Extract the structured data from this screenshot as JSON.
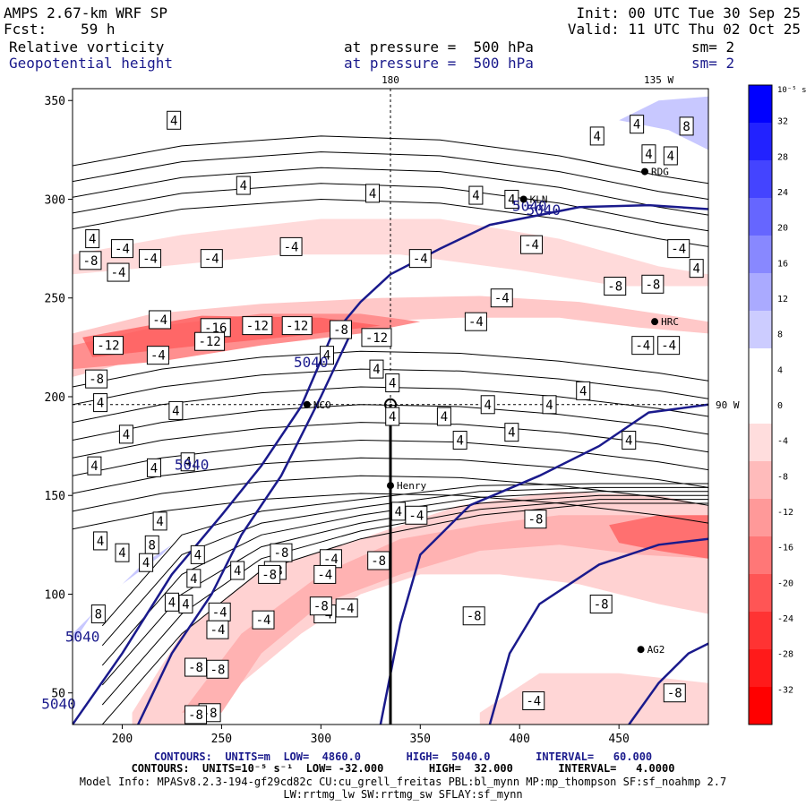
{
  "header": {
    "model": "AMPS 2.67-km WRF SP",
    "init": "Init: 00 UTC Tue 30 Sep 25",
    "fcst_label": "Fcst:",
    "fcst_value": "59 h",
    "valid": "Valid: 11 UTC Thu 02 Oct 25",
    "field1": "Relative vorticity",
    "field1_level": "at pressure =  500 hPa",
    "field1_sm": "sm= 2",
    "field2": "Geopotential height",
    "field2_level": "at pressure =  500 hPa",
    "field2_sm": "sm= 2"
  },
  "footer": {
    "line1": "CONTOURS:  UNITS=m  LOW=  4860.0       HIGH=  5040.0       INTERVAL=   60.000",
    "line2": "CONTOURS:  UNITS=10⁻⁵ s⁻¹  LOW= -32.000       HIGH=  32.000       INTERVAL=   4.0000",
    "line3": "Model Info: MPASv8.2.3-194-gf29cd82c CU:cu_grell_freitas PBL:bl_mynn MP:mp_thompson SF:sf_noahmp 2.7",
    "line4": "LW:rrtmg_lw SW:rrtmg_sw SFLAY:sf_mynn"
  },
  "colors": {
    "height_contour": "#1a1a8c",
    "vort_pos_max": "#0000ff",
    "vort_neg_max": "#ff0000"
  },
  "chart_data": {
    "type": "heatmap",
    "description_fields": [
      "Relative vorticity (shaded + black contours)",
      "Geopotential height (blue contours)"
    ],
    "x_ticks": [
      200,
      250,
      300,
      350,
      400,
      450
    ],
    "y_ticks": [
      50,
      100,
      150,
      200,
      250,
      300,
      350
    ],
    "xlim": [
      175,
      495
    ],
    "ylim": [
      34,
      356
    ],
    "lon_labels": [
      {
        "text": "180",
        "x": 335,
        "y_side": "top"
      },
      {
        "text": "135 W",
        "x": 470,
        "y_side": "top"
      },
      {
        "text": "90 W",
        "x": 495,
        "y": 196,
        "side": "right"
      }
    ],
    "stations": [
      {
        "name": "RDG",
        "x": 463,
        "y": 314
      },
      {
        "name": "KLN",
        "x": 402,
        "y": 300
      },
      {
        "name": "HRC",
        "x": 468,
        "y": 238
      },
      {
        "name": "NCO",
        "x": 293,
        "y": 196
      },
      {
        "name": "Henry",
        "x": 335,
        "y": 155
      },
      {
        "name": "AG2",
        "x": 461,
        "y": 72
      }
    ],
    "height_contour_label": "5040",
    "height_contour_labels": [
      {
        "x": 412,
        "y": 292
      },
      {
        "x": 295,
        "y": 215
      },
      {
        "x": 235,
        "y": 163
      },
      {
        "x": 180,
        "y": 76
      },
      {
        "x": 168,
        "y": 42
      },
      {
        "x": 405,
        "y": 294
      }
    ],
    "vort_labels": [
      {
        "v": "4",
        "x": 226,
        "y": 340
      },
      {
        "v": "4",
        "x": 439,
        "y": 332
      },
      {
        "v": "4",
        "x": 476,
        "y": 322
      },
      {
        "v": "4",
        "x": 465,
        "y": 323
      },
      {
        "v": "4",
        "x": 261,
        "y": 307
      },
      {
        "v": "4",
        "x": 378,
        "y": 302
      },
      {
        "v": "4",
        "x": 396,
        "y": 300
      },
      {
        "v": "4",
        "x": 326,
        "y": 303
      },
      {
        "v": "4",
        "x": 459,
        "y": 338
      },
      {
        "v": "8",
        "x": 484,
        "y": 337
      },
      {
        "v": "4",
        "x": 185,
        "y": 280
      },
      {
        "v": "-8",
        "x": 184,
        "y": 269
      },
      {
        "v": "-4",
        "x": 200,
        "y": 275
      },
      {
        "v": "-4",
        "x": 214,
        "y": 270
      },
      {
        "v": "-4",
        "x": 198,
        "y": 263
      },
      {
        "v": "-4",
        "x": 245,
        "y": 270
      },
      {
        "v": "-4",
        "x": 285,
        "y": 276
      },
      {
        "v": "-4",
        "x": 350,
        "y": 270
      },
      {
        "v": "-4",
        "x": 406,
        "y": 277
      },
      {
        "v": "-4",
        "x": 480,
        "y": 275
      },
      {
        "v": "4",
        "x": 489,
        "y": 265
      },
      {
        "v": "-8",
        "x": 448,
        "y": 256
      },
      {
        "v": "-8",
        "x": 467,
        "y": 257
      },
      {
        "v": "-4",
        "x": 391,
        "y": 250
      },
      {
        "v": "-4",
        "x": 219,
        "y": 239
      },
      {
        "v": "-16",
        "x": 247,
        "y": 235
      },
      {
        "v": "-12",
        "x": 268,
        "y": 236
      },
      {
        "v": "-12",
        "x": 288,
        "y": 236
      },
      {
        "v": "-8",
        "x": 310,
        "y": 234
      },
      {
        "v": "-12",
        "x": 328,
        "y": 230
      },
      {
        "v": "-12",
        "x": 244,
        "y": 228
      },
      {
        "v": "-4",
        "x": 378,
        "y": 238
      },
      {
        "v": "-4",
        "x": 462,
        "y": 226
      },
      {
        "v": "-4",
        "x": 475,
        "y": 226
      },
      {
        "v": "-12",
        "x": 193,
        "y": 226
      },
      {
        "v": "-4",
        "x": 218,
        "y": 221
      },
      {
        "v": "4",
        "x": 303,
        "y": 221
      },
      {
        "v": "4",
        "x": 328,
        "y": 214
      },
      {
        "v": "-8",
        "x": 187,
        "y": 209
      },
      {
        "v": "4",
        "x": 336,
        "y": 207
      },
      {
        "v": "4",
        "x": 432,
        "y": 203
      },
      {
        "v": "4",
        "x": 189,
        "y": 197
      },
      {
        "v": "4",
        "x": 227,
        "y": 193
      },
      {
        "v": "4",
        "x": 362,
        "y": 190
      },
      {
        "v": "4",
        "x": 384,
        "y": 196
      },
      {
        "v": "4",
        "x": 415,
        "y": 196
      },
      {
        "v": "4",
        "x": 336,
        "y": 190
      },
      {
        "v": "4",
        "x": 202,
        "y": 181
      },
      {
        "v": "4",
        "x": 370,
        "y": 178
      },
      {
        "v": "4",
        "x": 396,
        "y": 182
      },
      {
        "v": "4",
        "x": 455,
        "y": 178
      },
      {
        "v": "4",
        "x": 186,
        "y": 165
      },
      {
        "v": "4",
        "x": 216,
        "y": 164
      },
      {
        "v": "4",
        "x": 233,
        "y": 167
      },
      {
        "v": "4",
        "x": 339,
        "y": 142
      },
      {
        "v": "-4",
        "x": 348,
        "y": 140
      },
      {
        "v": "-8",
        "x": 408,
        "y": 138
      },
      {
        "v": "4",
        "x": 219,
        "y": 137
      },
      {
        "v": "8",
        "x": 215,
        "y": 125
      },
      {
        "v": "4",
        "x": 189,
        "y": 127
      },
      {
        "v": "4",
        "x": 200,
        "y": 121
      },
      {
        "v": "4",
        "x": 238,
        "y": 120
      },
      {
        "v": "4",
        "x": 212,
        "y": 116
      },
      {
        "v": "-8",
        "x": 280,
        "y": 121
      },
      {
        "v": "-4",
        "x": 305,
        "y": 118
      },
      {
        "v": "-8",
        "x": 329,
        "y": 117
      },
      {
        "v": "4",
        "x": 258,
        "y": 112
      },
      {
        "v": "4",
        "x": 236,
        "y": 108
      },
      {
        "v": "-8",
        "x": 277,
        "y": 112
      },
      {
        "v": "-8",
        "x": 274,
        "y": 110
      },
      {
        "v": "-4",
        "x": 302,
        "y": 110
      },
      {
        "v": "4",
        "x": 225,
        "y": 96
      },
      {
        "v": "-4",
        "x": 313,
        "y": 93
      },
      {
        "v": "4",
        "x": 232,
        "y": 95
      },
      {
        "v": "8",
        "x": 188,
        "y": 90
      },
      {
        "v": "-4",
        "x": 249,
        "y": 91
      },
      {
        "v": "-4",
        "x": 271,
        "y": 87
      },
      {
        "v": "-4",
        "x": 302,
        "y": 90
      },
      {
        "v": "-8",
        "x": 300,
        "y": 94
      },
      {
        "v": "-8",
        "x": 377,
        "y": 89
      },
      {
        "v": "-8",
        "x": 441,
        "y": 95
      },
      {
        "v": "-4",
        "x": 248,
        "y": 82
      },
      {
        "v": "-8",
        "x": 248,
        "y": 62
      },
      {
        "v": "-8",
        "x": 237,
        "y": 63
      },
      {
        "v": "-4",
        "x": 407,
        "y": 46
      },
      {
        "v": "-8",
        "x": 478,
        "y": 50
      },
      {
        "v": "-8",
        "x": 244,
        "y": 40
      },
      {
        "v": "-8",
        "x": 237,
        "y": 39
      }
    ],
    "colorbar": {
      "unit": "10⁻⁵ s⁻¹",
      "ticks": [
        "32",
        "28",
        "24",
        "20",
        "16",
        "12",
        "8",
        "4",
        "0",
        "-4",
        "-8",
        "-12",
        "-16",
        "-20",
        "-24",
        "-28",
        "-32"
      ],
      "range": [
        -32,
        32
      ],
      "colors_top_to_bottom": [
        "#0000ff",
        "#2222ff",
        "#4444ff",
        "#6666ff",
        "#8888ff",
        "#aaaaff",
        "#ccccff",
        "#ffffff",
        "#ffffff",
        "#ffdddd",
        "#ffbbbb",
        "#ff9999",
        "#ff7777",
        "#ff5555",
        "#ff3333",
        "#ff1a1a",
        "#ff0000"
      ]
    }
  }
}
